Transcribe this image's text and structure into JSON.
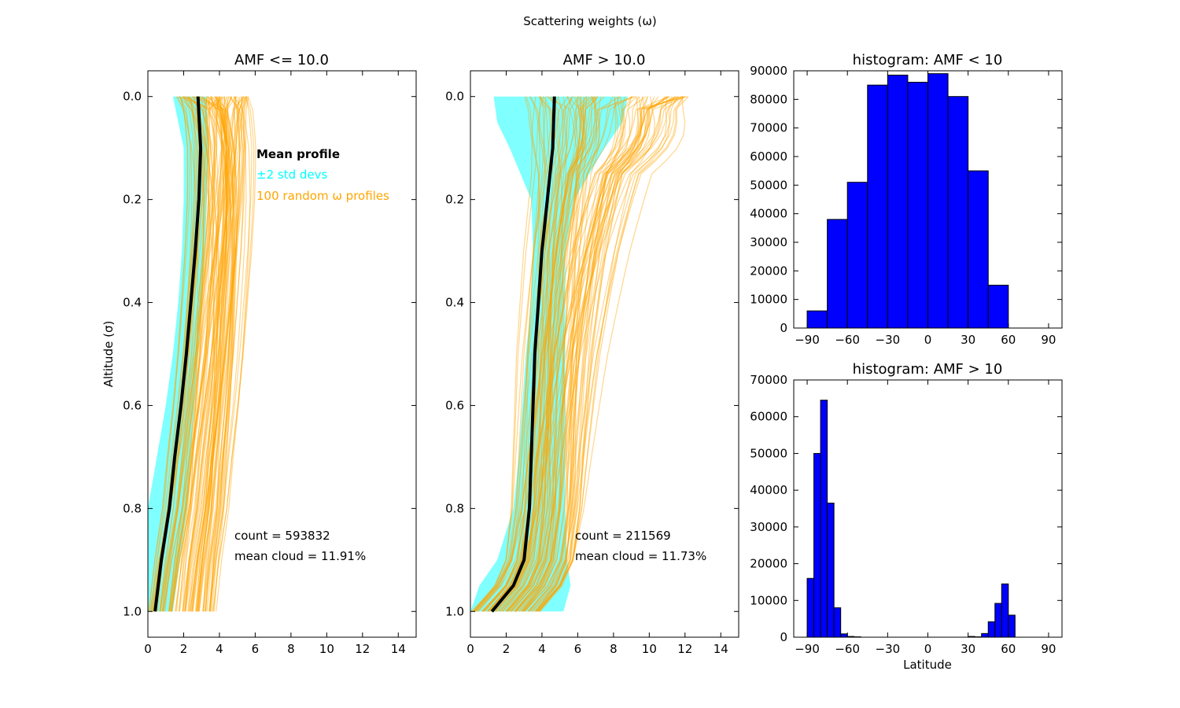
{
  "figure": {
    "title": "Scattering weights (ω)"
  },
  "chart_data": [
    {
      "type": "line",
      "panel": "profile-low",
      "title": "AMF <= 10.0",
      "ylabel": "Altitude (σ)",
      "xlim": [
        0,
        15
      ],
      "ylim": [
        1.05,
        -0.05
      ],
      "xticks": [
        "0",
        "2",
        "4",
        "6",
        "8",
        "10",
        "12",
        "14"
      ],
      "yticks": [
        "0.0",
        "0.2",
        "0.4",
        "0.6",
        "0.8",
        "1.0"
      ],
      "legend": [
        {
          "label": "Mean profile",
          "color": "#000000"
        },
        {
          "label": "±2 std devs",
          "color": "#00ffff"
        },
        {
          "label": "100 random ω profiles",
          "color": "#ffa500"
        }
      ],
      "annotations": [
        "count = 593832",
        "mean cloud = 11.91%"
      ],
      "mean": {
        "y": [
          0,
          0.1,
          0.2,
          0.3,
          0.4,
          0.5,
          0.6,
          0.7,
          0.8,
          0.9,
          1.0
        ],
        "x": [
          2.8,
          2.95,
          2.85,
          2.65,
          2.4,
          2.15,
          1.85,
          1.5,
          1.2,
          0.75,
          0.4
        ]
      },
      "std_band": {
        "y": [
          0,
          0.1,
          0.2,
          0.3,
          0.4,
          0.5,
          0.6,
          0.7,
          0.8,
          0.9,
          1.0
        ],
        "low": [
          1.4,
          2.0,
          2.0,
          1.9,
          1.7,
          1.4,
          1.0,
          0.5,
          0.0,
          0.0,
          0.0
        ],
        "high": [
          3.3,
          3.4,
          3.3,
          3.2,
          3.0,
          2.8,
          2.6,
          2.4,
          2.2,
          1.8,
          1.4
        ]
      },
      "random_profiles": {
        "count": 100,
        "color": "#ffa500",
        "top_x_range": [
          1.6,
          5.8
        ],
        "bottom_x_range": [
          0.0,
          3.9
        ]
      }
    },
    {
      "type": "line",
      "panel": "profile-high",
      "title": "AMF > 10.0",
      "xlim": [
        0,
        15
      ],
      "ylim": [
        1.05,
        -0.05
      ],
      "xticks": [
        "0",
        "2",
        "4",
        "6",
        "8",
        "10",
        "12",
        "14"
      ],
      "yticks": [
        "0.0",
        "0.2",
        "0.4",
        "0.6",
        "0.8",
        "1.0"
      ],
      "annotations": [
        "count = 211569",
        "mean cloud = 11.73%"
      ],
      "mean": {
        "y": [
          0,
          0.1,
          0.2,
          0.3,
          0.4,
          0.5,
          0.6,
          0.7,
          0.8,
          0.9,
          0.95,
          1.0
        ],
        "x": [
          4.7,
          4.6,
          4.3,
          4.0,
          3.8,
          3.6,
          3.5,
          3.4,
          3.3,
          3.0,
          2.4,
          1.2
        ]
      },
      "std_band": {
        "y": [
          0,
          0.05,
          0.1,
          0.2,
          0.3,
          0.4,
          0.5,
          0.6,
          0.7,
          0.8,
          0.9,
          0.95,
          1.0
        ],
        "low": [
          1.3,
          1.5,
          2.2,
          3.4,
          3.5,
          3.4,
          3.1,
          2.9,
          2.7,
          2.4,
          1.5,
          0.5,
          0.0
        ],
        "high": [
          8.8,
          8.5,
          7.5,
          5.8,
          5.3,
          5.3,
          5.3,
          5.3,
          5.3,
          5.3,
          5.4,
          5.6,
          5.2
        ]
      },
      "random_profiles": {
        "count": 100,
        "color": "#ffa500",
        "top_x_range": [
          3.0,
          12.3
        ],
        "bottom_x_range": [
          0.0,
          4.0
        ]
      }
    },
    {
      "type": "bar",
      "panel": "hist-low",
      "title": "histogram: AMF < 10",
      "xlim": [
        -100,
        100
      ],
      "ylim": [
        0,
        90000
      ],
      "xticks": [
        "−90",
        "−60",
        "−30",
        "0",
        "30",
        "60",
        "90"
      ],
      "yticks": [
        "0",
        "10000",
        "20000",
        "30000",
        "40000",
        "50000",
        "60000",
        "70000",
        "80000",
        "90000"
      ],
      "bar_color": "#0000ff",
      "bin_edges": [
        -90,
        -75,
        -60,
        -45,
        -30,
        -15,
        0,
        15,
        30,
        45,
        60
      ],
      "values": [
        6000,
        38000,
        51000,
        85000,
        88500,
        86000,
        89000,
        81000,
        55000,
        15000
      ]
    },
    {
      "type": "bar",
      "panel": "hist-high",
      "title": "histogram: AMF > 10",
      "xlabel": "Latitude",
      "xlim": [
        -100,
        100
      ],
      "ylim": [
        0,
        70000
      ],
      "xticks": [
        "−90",
        "−60",
        "−30",
        "0",
        "30",
        "60",
        "90"
      ],
      "yticks": [
        "0",
        "10000",
        "20000",
        "30000",
        "40000",
        "50000",
        "60000",
        "70000"
      ],
      "bar_color": "#0000ff",
      "bin_edges": [
        -90,
        -85,
        -80,
        -75,
        -70,
        -65,
        -60,
        -55,
        -50,
        -45,
        -40,
        -35,
        -30,
        -25,
        -20,
        -15,
        -10,
        -5,
        0,
        5,
        10,
        15,
        20,
        25,
        30,
        35,
        40,
        45,
        50,
        55,
        60,
        65
      ],
      "values": [
        16000,
        50000,
        64500,
        36500,
        8000,
        900,
        200,
        100,
        0,
        0,
        0,
        0,
        0,
        0,
        0,
        0,
        0,
        0,
        0,
        0,
        0,
        0,
        0,
        0,
        200,
        100,
        1000,
        4200,
        9200,
        14500,
        6000
      ]
    }
  ]
}
